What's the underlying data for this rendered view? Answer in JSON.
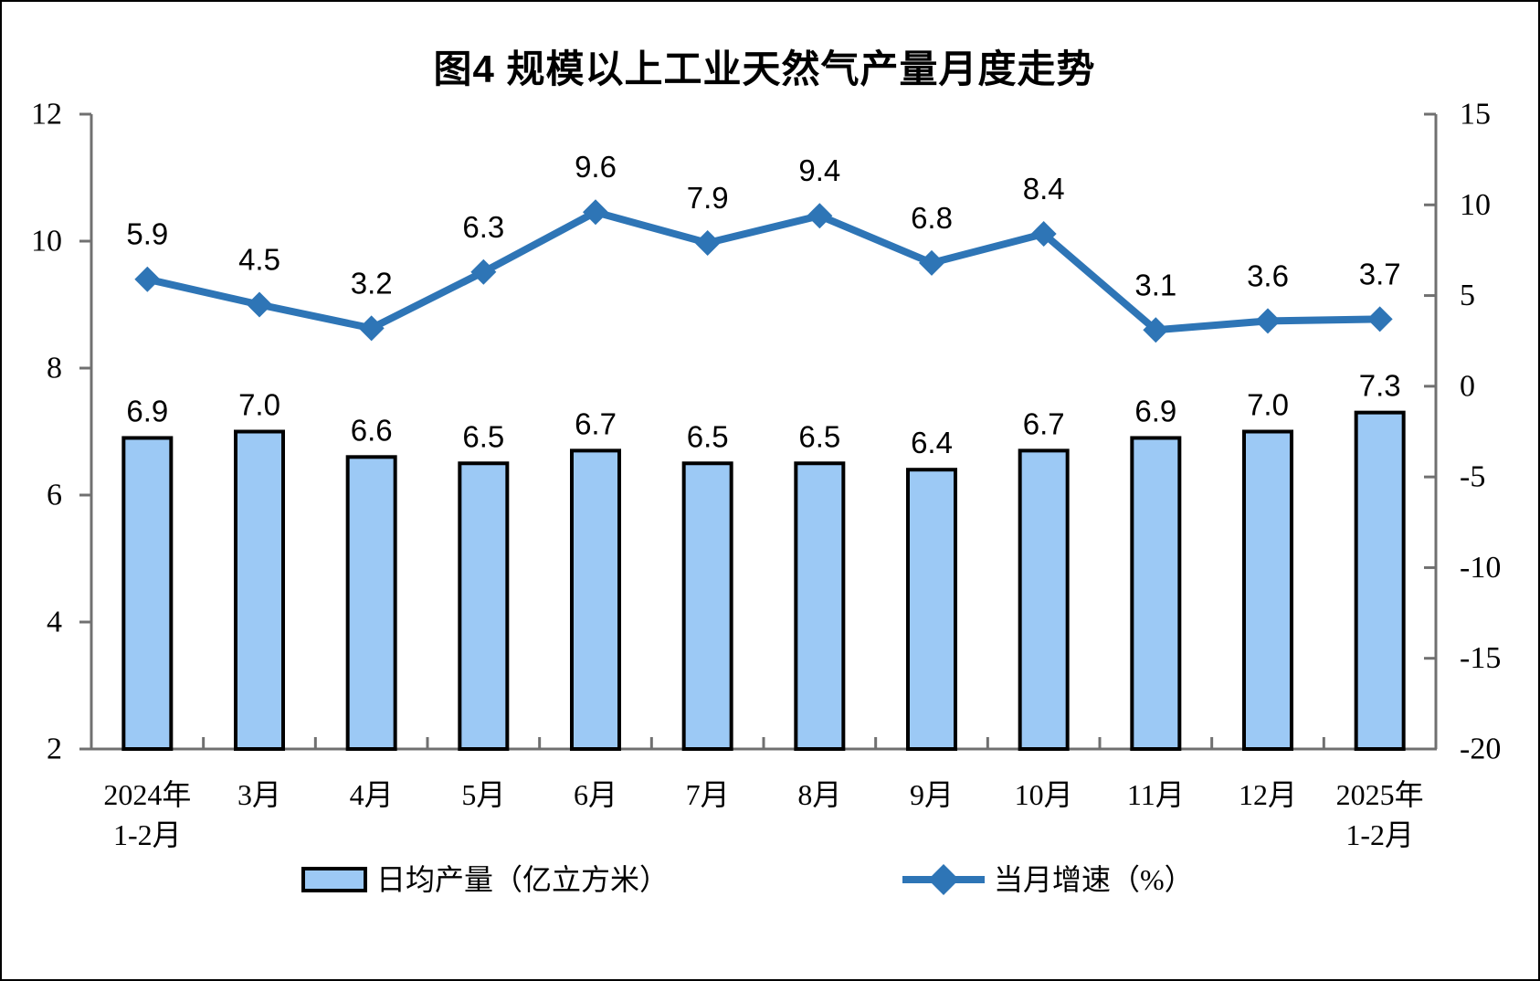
{
  "title": "图4 规模以上工业天然气产量月度走势",
  "chart_data": {
    "type": "combo-bar-line",
    "title": "图4 规模以上工业天然气产量月度走势",
    "categories": [
      "2024年\n1-2月",
      "3月",
      "4月",
      "5月",
      "6月",
      "7月",
      "8月",
      "9月",
      "10月",
      "11月",
      "12月",
      "2025年\n1-2月"
    ],
    "series": [
      {
        "name": "日均产量（亿立方米）",
        "type": "bar",
        "axis": "left",
        "values": [
          6.9,
          7.0,
          6.6,
          6.5,
          6.7,
          6.5,
          6.5,
          6.4,
          6.7,
          6.9,
          7.0,
          7.3
        ],
        "fill": "#9CC9F5",
        "stroke": "#000000"
      },
      {
        "name": "当月增速（%）",
        "type": "line",
        "axis": "right",
        "values": [
          5.9,
          4.5,
          3.2,
          6.3,
          9.6,
          7.9,
          9.4,
          6.8,
          8.4,
          3.1,
          3.6,
          3.7
        ],
        "color": "#2E75B6",
        "marker": "diamond"
      }
    ],
    "left_axis": {
      "min": 2,
      "max": 12,
      "ticks": [
        2,
        4,
        6,
        8,
        10,
        12
      ]
    },
    "right_axis": {
      "min": -20,
      "max": 15,
      "ticks": [
        -20,
        -15,
        -10,
        -5,
        0,
        5,
        10,
        15
      ]
    },
    "grid": false,
    "legend_position": "bottom",
    "value_labels": true,
    "colors": {
      "axis": "#707070",
      "text": "#000000"
    }
  }
}
